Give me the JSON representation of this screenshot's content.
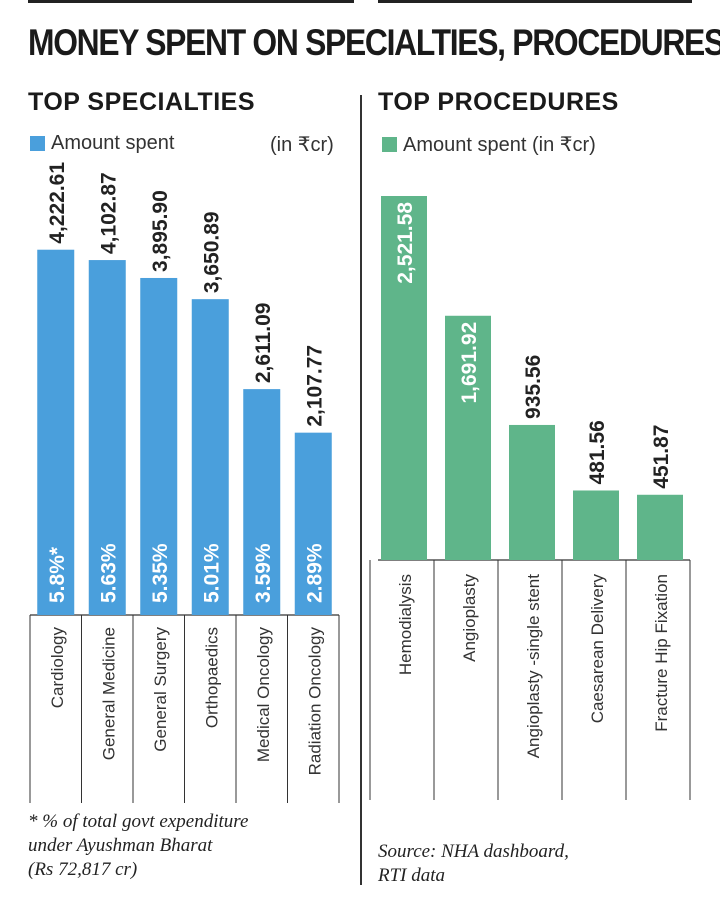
{
  "title": "MONEY SPENT ON SPECIALTIES, PROCEDURES",
  "specialties": {
    "heading": "TOP SPECIALTIES",
    "legend": "Amount spent",
    "unit": "(in ₹cr)",
    "color": "#4a9fdc",
    "footnote_lines": [
      "* % of total govt expenditure",
      "under Ayushman Bharat",
      "(Rs 72,817 cr)"
    ]
  },
  "procedures": {
    "heading": "TOP PROCEDURES",
    "legend": "Amount spent (in ₹cr)",
    "color": "#5fb58a",
    "source_lines": [
      "Source: NHA dashboard,",
      "RTI data"
    ]
  },
  "chart_data": [
    {
      "type": "bar",
      "title": "TOP SPECIALTIES",
      "categories": [
        "Cardiology",
        "General Medicine",
        "General Surgery",
        "Orthopaedics",
        "Medical Oncology",
        "Radiation Oncology"
      ],
      "series": [
        {
          "name": "Amount spent",
          "values": [
            4222.61,
            4102.87,
            3895.9,
            3650.89,
            2611.09,
            2107.77
          ]
        }
      ],
      "value_labels": [
        "4,222.61",
        "4,102.87",
        "3,895.90",
        "3,650.89",
        "2,611.09",
        "2,107.77"
      ],
      "inner_labels": [
        "5.8%*",
        "5.63%",
        "5.35%",
        "5.01%",
        "3.59%",
        "2.89%"
      ],
      "unit": "(in ₹cr)",
      "ylim": [
        0,
        6300
      ]
    },
    {
      "type": "bar",
      "title": "TOP PROCEDURES",
      "categories": [
        "Hemodialysis",
        "Angioplasty",
        "Angioplasty -single stent",
        "Caesarean Delivery",
        "Fracture Hip Fixation"
      ],
      "series": [
        {
          "name": "Amount spent (in ₹cr)",
          "values": [
            2521.58,
            1691.92,
            935.56,
            481.56,
            451.87
          ]
        }
      ],
      "value_labels": [
        "2,521.58",
        "1,691.92",
        "935.56",
        "481.56",
        "451.87"
      ],
      "ylim": [
        0,
        2521.58
      ]
    }
  ]
}
